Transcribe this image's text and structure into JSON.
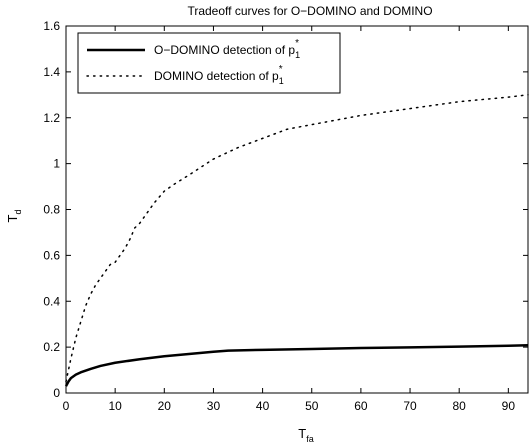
{
  "chart_data": {
    "type": "line",
    "title": "Tradeoff curves for O−DOMINO and DOMINO",
    "xlabel_main": "T",
    "xlabel_sub": "fa",
    "ylabel_main": "T",
    "ylabel_sub": "d",
    "xlim": [
      0,
      94
    ],
    "ylim": [
      0,
      1.6
    ],
    "xticks": [
      "0",
      "10",
      "20",
      "30",
      "40",
      "50",
      "60",
      "70",
      "80",
      "90"
    ],
    "xtick_values": [
      0,
      10,
      20,
      30,
      40,
      50,
      60,
      70,
      80,
      90
    ],
    "yticks": [
      "0",
      "0.2",
      "0.4",
      "0.6",
      "0.8",
      "1",
      "1.2",
      "1.4",
      "1.6"
    ],
    "ytick_values": [
      0,
      0.2,
      0.4,
      0.6,
      0.8,
      1.0,
      1.2,
      1.4,
      1.6
    ],
    "grid": false,
    "legend_position": "top-left",
    "series": [
      {
        "name": "O−DOMINO detection of p",
        "name_sup": "*",
        "name_sub": "1",
        "style": "solid",
        "color": "#000000",
        "x": [
          0,
          0.5,
          1,
          2,
          3,
          5,
          7,
          10,
          15,
          20,
          25,
          30,
          33,
          40,
          50,
          60,
          70,
          80,
          90,
          94
        ],
        "y": [
          0.03,
          0.05,
          0.065,
          0.08,
          0.09,
          0.105,
          0.118,
          0.132,
          0.147,
          0.16,
          0.17,
          0.18,
          0.185,
          0.188,
          0.192,
          0.196,
          0.199,
          0.202,
          0.206,
          0.208
        ]
      },
      {
        "name": "DOMINO detection of p",
        "name_sup": "*",
        "name_sub": "1",
        "style": "dotted",
        "color": "#000000",
        "x": [
          0,
          1,
          2,
          3,
          4,
          5,
          6,
          7,
          8,
          9,
          10,
          11,
          12,
          13,
          14,
          15,
          16,
          18,
          20,
          22,
          25,
          30,
          35,
          40,
          45,
          50,
          55,
          60,
          70,
          80,
          90,
          94
        ],
        "y": [
          0.05,
          0.15,
          0.24,
          0.31,
          0.38,
          0.43,
          0.47,
          0.5,
          0.53,
          0.56,
          0.57,
          0.6,
          0.63,
          0.67,
          0.72,
          0.74,
          0.77,
          0.83,
          0.88,
          0.91,
          0.95,
          1.02,
          1.07,
          1.11,
          1.15,
          1.17,
          1.19,
          1.21,
          1.24,
          1.27,
          1.29,
          1.3
        ]
      }
    ]
  }
}
